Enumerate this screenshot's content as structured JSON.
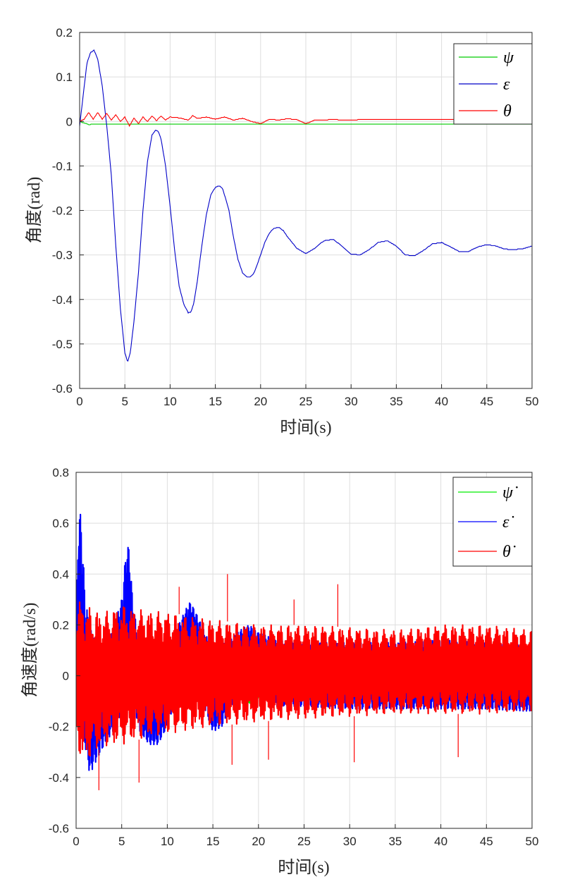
{
  "chart_data": [
    {
      "type": "line",
      "xlabel": "时间(s)",
      "ylabel": "角度(rad)",
      "xlim": [
        0,
        50
      ],
      "ylim": [
        -0.6,
        0.2
      ],
      "xticks": [
        "0",
        "5",
        "10",
        "15",
        "20",
        "25",
        "30",
        "35",
        "40",
        "45",
        "50"
      ],
      "yticks": [
        "0.2",
        "0.1",
        "0",
        "-0.1",
        "-0.2",
        "-0.3",
        "-0.4",
        "-0.5",
        "-0.6"
      ],
      "grid": true,
      "legend_position": "top-right",
      "series": [
        {
          "name": "ψ",
          "color": "#00cc00",
          "x": [
            0,
            1,
            2,
            5,
            10,
            20,
            30,
            40,
            50
          ],
          "y": [
            0,
            -0.007,
            -0.006,
            -0.006,
            -0.006,
            -0.006,
            -0.006,
            -0.006,
            -0.006
          ]
        },
        {
          "name": "ε",
          "color": "#0000c8",
          "x": [
            0,
            0.4,
            0.8,
            1.2,
            1.6,
            2.0,
            2.5,
            3.0,
            3.5,
            4.0,
            4.5,
            5.0,
            5.3,
            5.6,
            6.0,
            6.5,
            7.0,
            7.5,
            8.0,
            8.4,
            8.7,
            9.0,
            9.5,
            10.0,
            10.5,
            11.0,
            11.5,
            12.0,
            12.3,
            12.6,
            13.0,
            13.5,
            14.0,
            14.5,
            15.0,
            15.4,
            15.8,
            16.5,
            17.0,
            17.5,
            18.0,
            18.5,
            18.9,
            19.3,
            20.0,
            20.5,
            21.0,
            21.5,
            22.0,
            22.5,
            23.0,
            24.0,
            25.0,
            26.0,
            27.0,
            28.0,
            29.0,
            30.0,
            31.0,
            32.0,
            33.0,
            34.0,
            35.0,
            36.0,
            37.0,
            38.0,
            39.0,
            40.0,
            41.0,
            42.0,
            43.0,
            44.0,
            45.0,
            46.0,
            47.0,
            48.0,
            49.0,
            50.0
          ],
          "y": [
            -0.01,
            0.06,
            0.13,
            0.155,
            0.16,
            0.14,
            0.08,
            -0.01,
            -0.12,
            -0.28,
            -0.42,
            -0.52,
            -0.54,
            -0.52,
            -0.45,
            -0.34,
            -0.2,
            -0.09,
            -0.03,
            -0.02,
            -0.022,
            -0.04,
            -0.1,
            -0.19,
            -0.29,
            -0.37,
            -0.41,
            -0.43,
            -0.428,
            -0.41,
            -0.36,
            -0.28,
            -0.21,
            -0.165,
            -0.148,
            -0.145,
            -0.15,
            -0.2,
            -0.26,
            -0.31,
            -0.34,
            -0.35,
            -0.349,
            -0.34,
            -0.3,
            -0.27,
            -0.25,
            -0.24,
            -0.238,
            -0.245,
            -0.26,
            -0.285,
            -0.297,
            -0.285,
            -0.268,
            -0.265,
            -0.28,
            -0.298,
            -0.3,
            -0.288,
            -0.272,
            -0.268,
            -0.28,
            -0.3,
            -0.302,
            -0.29,
            -0.275,
            -0.272,
            -0.282,
            -0.293,
            -0.292,
            -0.282,
            -0.277,
            -0.28,
            -0.287,
            -0.288,
            -0.286,
            -0.28
          ]
        },
        {
          "name": "θ",
          "color": "#ff0000",
          "x": [
            0,
            0.5,
            1.0,
            1.5,
            2.0,
            2.5,
            3.0,
            3.5,
            4.0,
            4.5,
            5.0,
            5.5,
            6.0,
            6.5,
            7.0,
            7.5,
            8.0,
            8.5,
            9.0,
            9.5,
            10.0,
            11.0,
            12.0,
            12.5,
            13.0,
            14.0,
            15.0,
            16.0,
            17.0,
            18.0,
            19.0,
            20.0,
            21.0,
            22.0,
            23.0,
            24.0,
            25.0,
            26.0,
            28.0,
            30.0,
            32.0,
            34.0,
            36.0,
            38.0,
            40.0,
            42.0,
            44.0,
            46.0,
            48.0,
            50.0
          ],
          "y": [
            0,
            0.005,
            0.02,
            0.005,
            0.02,
            0.005,
            0.018,
            0.003,
            0.015,
            0.0,
            0.01,
            -0.01,
            0.008,
            -0.005,
            0.01,
            0.0,
            0.012,
            0.002,
            0.012,
            0.003,
            0.01,
            0.008,
            0.003,
            0.013,
            0.007,
            0.01,
            0.005,
            0.01,
            0.003,
            0.007,
            0.0,
            -0.005,
            0.005,
            0.003,
            0.006,
            0.004,
            -0.005,
            0.003,
            0.004,
            0.003,
            0.005,
            0.004,
            0.005,
            0.004,
            0.005,
            0.004,
            0.005,
            0.004,
            0.005,
            0.004
          ]
        }
      ]
    },
    {
      "type": "line",
      "xlabel": "时间(s)",
      "ylabel": "角速度(rad/s)",
      "xlim": [
        0,
        50
      ],
      "ylim": [
        -0.6,
        0.8
      ],
      "xticks": [
        "0",
        "5",
        "10",
        "15",
        "20",
        "25",
        "30",
        "35",
        "40",
        "45",
        "50"
      ],
      "yticks": [
        "0.8",
        "0.6",
        "0.4",
        "0.2",
        "0",
        "-0.2",
        "-0.4",
        "-0.6"
      ],
      "grid": true,
      "legend_position": "top-right",
      "series": [
        {
          "name": "ψ̇",
          "color": "#00ee00",
          "x": [
            0,
            1,
            2,
            3,
            5,
            10,
            20,
            30,
            40,
            50
          ],
          "band_upper": [
            0.15,
            0.14,
            0.12,
            0.11,
            0.11,
            0.11,
            0.11,
            0.11,
            0.11,
            0.11
          ],
          "band_lower": [
            -0.15,
            -0.14,
            -0.12,
            -0.11,
            -0.11,
            -0.11,
            -0.11,
            -0.11,
            -0.11,
            -0.11
          ]
        },
        {
          "name": "ε̇",
          "color": "#0000ff",
          "x": [
            0,
            0.3,
            0.6,
            1.0,
            1.5,
            2.0,
            3.0,
            4.0,
            5.0,
            5.5,
            5.8,
            6.2,
            7.0,
            8.0,
            9.0,
            10.0,
            11.0,
            12.0,
            12.5,
            13.0,
            14.0,
            15.0,
            16.0,
            17.0,
            18.0,
            19.0,
            20.0,
            22.0,
            25.0,
            30.0,
            35.0,
            40.0,
            45.0,
            50.0
          ],
          "band_upper": [
            0.2,
            0.68,
            0.6,
            0.3,
            0.2,
            0.15,
            0.1,
            0.18,
            0.3,
            0.5,
            0.51,
            0.3,
            0.1,
            0.0,
            0.02,
            0.1,
            0.18,
            0.26,
            0.29,
            0.26,
            0.18,
            0.1,
            0.12,
            0.15,
            0.18,
            0.2,
            0.17,
            0.14,
            0.13,
            0.13,
            0.13,
            0.14,
            0.13,
            0.12
          ],
          "band_lower": [
            -0.25,
            -0.2,
            -0.25,
            -0.28,
            -0.39,
            -0.35,
            -0.28,
            -0.22,
            -0.15,
            -0.05,
            0.0,
            -0.1,
            -0.22,
            -0.27,
            -0.27,
            -0.2,
            -0.08,
            0.0,
            0.03,
            0.0,
            -0.12,
            -0.22,
            -0.2,
            -0.12,
            -0.08,
            -0.05,
            -0.08,
            -0.12,
            -0.12,
            -0.13,
            -0.13,
            -0.13,
            -0.13,
            -0.14
          ]
        },
        {
          "name": "θ̇",
          "color": "#ff0000",
          "x": [
            0,
            0.5,
            1.0,
            2.0,
            3.0,
            5.0,
            7.0,
            10.0,
            15.0,
            20.0,
            25.0,
            30.0,
            35.0,
            40.0,
            45.0,
            50.0
          ],
          "band_upper": [
            0.28,
            0.3,
            0.28,
            0.26,
            0.25,
            0.28,
            0.26,
            0.25,
            0.22,
            0.2,
            0.2,
            0.19,
            0.18,
            0.2,
            0.2,
            0.18
          ],
          "band_lower": [
            -0.3,
            -0.32,
            -0.35,
            -0.3,
            -0.28,
            -0.27,
            -0.25,
            -0.23,
            -0.2,
            -0.18,
            -0.17,
            -0.16,
            -0.15,
            -0.15,
            -0.15,
            -0.14
          ],
          "spikes": [
            {
              "x": 2.5,
              "y": -0.45
            },
            {
              "x": 6.9,
              "y": -0.42
            },
            {
              "x": 11.3,
              "y": 0.35
            },
            {
              "x": 16.6,
              "y": 0.4
            },
            {
              "x": 17.1,
              "y": -0.35
            },
            {
              "x": 21.1,
              "y": -0.33
            },
            {
              "x": 23.9,
              "y": 0.3
            },
            {
              "x": 28.7,
              "y": 0.36
            },
            {
              "x": 30.5,
              "y": -0.34
            },
            {
              "x": 41.9,
              "y": -0.32
            }
          ]
        }
      ]
    }
  ]
}
